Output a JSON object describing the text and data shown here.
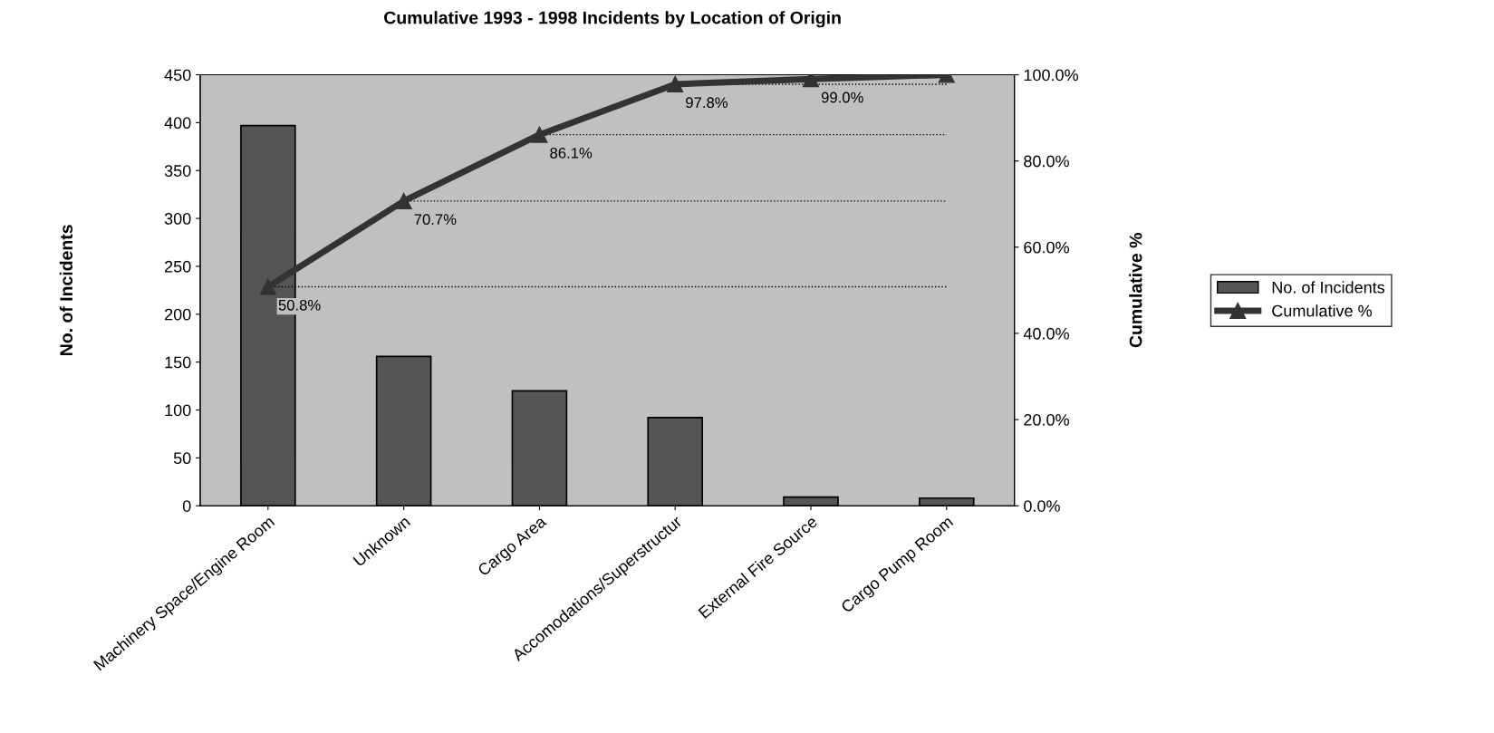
{
  "chart_data": {
    "type": "bar",
    "title": "Cumulative 1993 - 1998 Incidents by Location of Origin",
    "categories": [
      "Machinery Space/Engine Room",
      "Unknown",
      "Cargo Area",
      "Accomodations/Superstructur",
      "External Fire Source",
      "Cargo Pump Room"
    ],
    "series": [
      {
        "name": "No. of Incidents",
        "color": "#555555",
        "values": [
          397,
          156,
          120,
          92,
          9,
          8
        ]
      },
      {
        "name": "Cumulative %",
        "type": "line",
        "axis": "y2",
        "color": "#333333",
        "values": [
          50.8,
          70.7,
          86.1,
          97.8,
          99.0,
          100.0
        ],
        "value_labels": [
          "50.8%",
          "70.7%",
          "86.1%",
          "97.8%",
          "99.0%",
          null
        ]
      }
    ],
    "ylabel": "No. of Incidents",
    "y2label": "Cumulative %",
    "ylim": [
      0,
      450
    ],
    "yticks": [
      0,
      50,
      100,
      150,
      200,
      250,
      300,
      350,
      400,
      450
    ],
    "y2lim": [
      0,
      100
    ],
    "y2ticks": [
      {
        "value": 0,
        "label": "0.0%"
      },
      {
        "value": 20,
        "label": "20.0%"
      },
      {
        "value": 40,
        "label": "40.0%"
      },
      {
        "value": 60,
        "label": "60.0%"
      },
      {
        "value": 80,
        "label": "80.0%"
      },
      {
        "value": 100,
        "label": "100.0%"
      }
    ],
    "ref_lines": [
      {
        "axis": "y2",
        "value": 50.8,
        "line_style": "dotted"
      },
      {
        "axis": "y2",
        "value": 70.7,
        "line_style": "dotted"
      },
      {
        "axis": "y2",
        "value": 86.1,
        "line_style": "dotted"
      },
      {
        "axis": "y2",
        "value": 97.8,
        "line_style": "dotted"
      }
    ],
    "marker": "triangle",
    "grid": false,
    "legend": "right"
  }
}
